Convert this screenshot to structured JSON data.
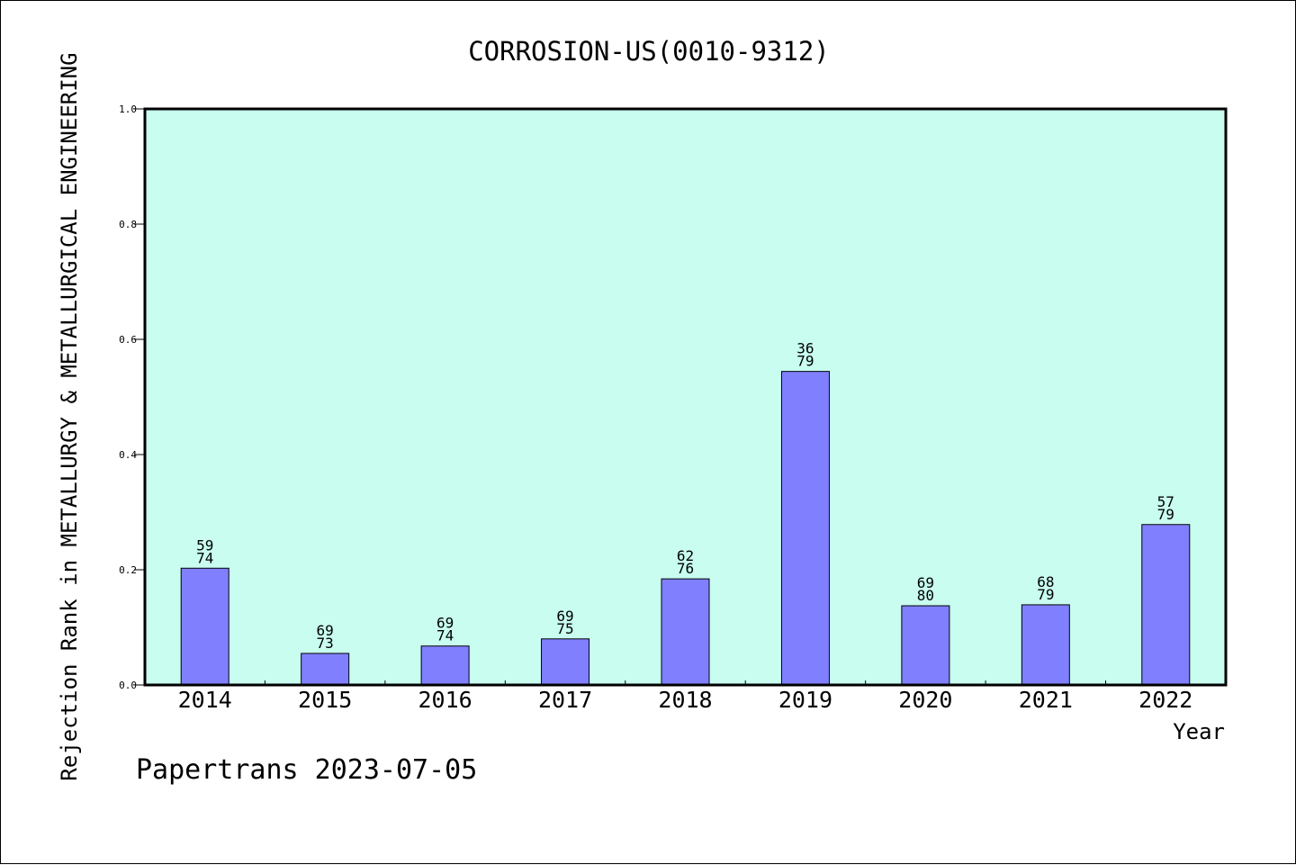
{
  "chart_data": {
    "type": "bar",
    "title": "CORROSION-US(0010-9312)",
    "xlabel": "Year",
    "ylabel": "Rejection Rank in METALLURGY & METALLURGICAL ENGINEERING",
    "footer": "Papertrans 2023-07-05",
    "categories": [
      "2014",
      "2015",
      "2016",
      "2017",
      "2018",
      "2019",
      "2020",
      "2021",
      "2022"
    ],
    "values": [
      0.2027,
      0.0548,
      0.0676,
      0.08,
      0.1842,
      0.5443,
      0.1375,
      0.1392,
      0.2785
    ],
    "bar_labels": [
      {
        "rank": "59",
        "total": "74"
      },
      {
        "rank": "69",
        "total": "73"
      },
      {
        "rank": "69",
        "total": "74"
      },
      {
        "rank": "69",
        "total": "75"
      },
      {
        "rank": "62",
        "total": "76"
      },
      {
        "rank": "36",
        "total": "79"
      },
      {
        "rank": "69",
        "total": "80"
      },
      {
        "rank": "68",
        "total": "79"
      },
      {
        "rank": "57",
        "total": "79"
      }
    ],
    "yticks": [
      "0.0",
      "0.2",
      "0.4",
      "0.6",
      "0.8",
      "1.0"
    ],
    "ylim": [
      0,
      1.0
    ],
    "grid": false,
    "colors": {
      "plot_background": "#c8fdf0",
      "bar_fill": "#8080ff",
      "bar_stroke": "#000000"
    }
  }
}
